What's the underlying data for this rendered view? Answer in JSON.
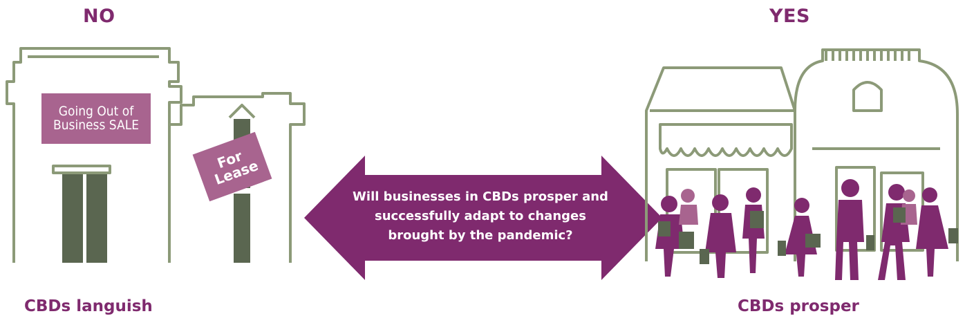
{
  "left": {
    "heading": "NO",
    "caption": "CBDs languish",
    "sale_sign": "Going Out of Business SALE",
    "lease_sign": "For Lease"
  },
  "right": {
    "heading": "YES",
    "caption": "CBDs prosper"
  },
  "arrow": {
    "question": "Will businesses in CBDs prosper and successfully adapt to changes brought by the pandemic?"
  },
  "colors": {
    "accent": "#7f2a6e",
    "outline": "#8c9a78",
    "door": "#5a6650",
    "sign": "#a8648f",
    "shopper": "#7f2a6e"
  }
}
